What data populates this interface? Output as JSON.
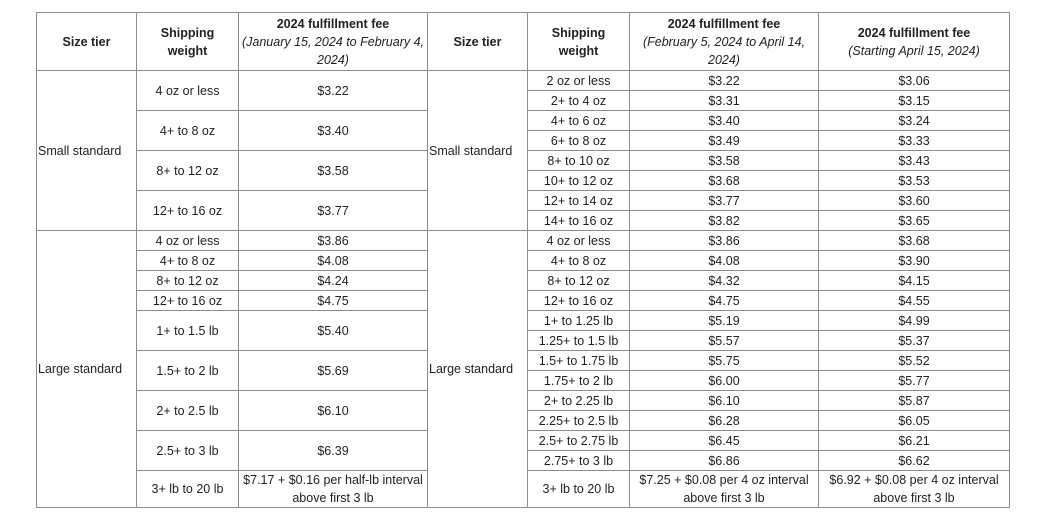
{
  "headers": {
    "size_tier": "Size tier",
    "shipping_weight_1": "Shipping",
    "shipping_weight_2": "weight",
    "fee_title": "2024 fulfillment fee",
    "fee_a_period": "(January 15, 2024 to February 4, 2024)",
    "fee_b_period": "(February 5, 2024 to April 14, 2024)",
    "fee_c_period": "(Starting April 15, 2024)"
  },
  "left": {
    "small_standard": {
      "tier": "Small standard",
      "rows": [
        {
          "w": "4 oz or less",
          "fee": "$3.22"
        },
        {
          "w": "4+ to 8 oz",
          "fee": "$3.40"
        },
        {
          "w": "8+ to 12 oz",
          "fee": "$3.58"
        },
        {
          "w": "12+ to 16 oz",
          "fee": "$3.77"
        }
      ]
    },
    "large_standard": {
      "tier": "Large standard",
      "rows": [
        {
          "w": "4 oz or less",
          "fee": "$3.86"
        },
        {
          "w": "4+ to 8 oz",
          "fee": "$4.08"
        },
        {
          "w": "8+ to 12 oz",
          "fee": "$4.24"
        },
        {
          "w": "12+ to 16 oz",
          "fee": "$4.75"
        },
        {
          "w": "1+ to 1.5 lb",
          "fee": "$5.40"
        },
        {
          "w": "1.5+ to 2 lb",
          "fee": "$5.69"
        },
        {
          "w": "2+ to 2.5 lb",
          "fee": "$6.10"
        },
        {
          "w": "2.5+ to 3 lb",
          "fee": "$6.39"
        },
        {
          "w": "3+ lb to 20 lb",
          "fee": "$7.17 + $0.16 per half-lb interval above first 3 lb"
        }
      ]
    }
  },
  "right": {
    "small_standard": {
      "tier": "Small standard",
      "rows": [
        {
          "w": "2 oz or less",
          "b": "$3.22",
          "c": "$3.06"
        },
        {
          "w": "2+ to 4 oz",
          "b": "$3.31",
          "c": "$3.15"
        },
        {
          "w": "4+ to 6 oz",
          "b": "$3.40",
          "c": "$3.24"
        },
        {
          "w": "6+ to 8 oz",
          "b": "$3.49",
          "c": "$3.33"
        },
        {
          "w": "8+ to 10 oz",
          "b": "$3.58",
          "c": "$3.43"
        },
        {
          "w": "10+ to 12 oz",
          "b": "$3.68",
          "c": "$3.53"
        },
        {
          "w": "12+ to 14 oz",
          "b": "$3.77",
          "c": "$3.60"
        },
        {
          "w": "14+ to 16 oz",
          "b": "$3.82",
          "c": "$3.65"
        }
      ]
    },
    "large_standard": {
      "tier": "Large standard",
      "rows": [
        {
          "w": "4 oz or less",
          "b": "$3.86",
          "c": "$3.68"
        },
        {
          "w": "4+ to 8 oz",
          "b": "$4.08",
          "c": "$3.90"
        },
        {
          "w": "8+ to 12 oz",
          "b": "$4.32",
          "c": "$4.15"
        },
        {
          "w": "12+ to 16 oz",
          "b": "$4.75",
          "c": "$4.55"
        },
        {
          "w": "1+ to 1.25 lb",
          "b": "$5.19",
          "c": "$4.99"
        },
        {
          "w": "1.25+ to 1.5 lb",
          "b": "$5.57",
          "c": "$5.37"
        },
        {
          "w": "1.5+ to 1.75 lb",
          "b": "$5.75",
          "c": "$5.52"
        },
        {
          "w": "1.75+ to 2 lb",
          "b": "$6.00",
          "c": "$5.77"
        },
        {
          "w": "2+ to 2.25 lb",
          "b": "$6.10",
          "c": "$5.87"
        },
        {
          "w": "2.25+ to 2.5 lb",
          "b": "$6.28",
          "c": "$6.05"
        },
        {
          "w": "2.5+ to 2.75 lb",
          "b": "$6.45",
          "c": "$6.21"
        },
        {
          "w": "2.75+ to 3 lb",
          "b": "$6.86",
          "c": "$6.62"
        },
        {
          "w": "3+ lb to 20 lb",
          "b": "$7.25 + $0.08 per 4 oz interval above first 3 lb",
          "c": "$6.92 + $0.08 per 4 oz interval above first 3 lb"
        }
      ]
    }
  }
}
